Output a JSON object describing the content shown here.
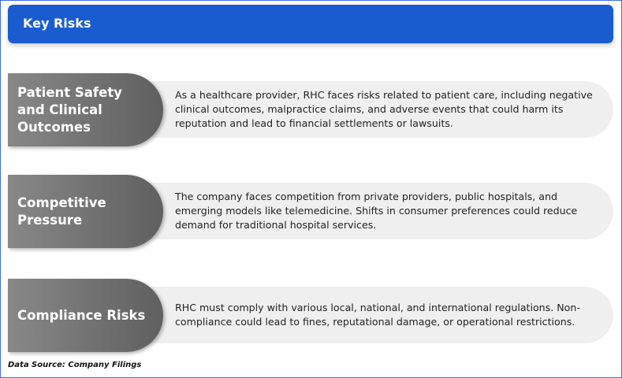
{
  "header": {
    "title": "Key Risks"
  },
  "risks": [
    {
      "title": "Patient Safety and Clinical Outcomes",
      "description": "As a healthcare provider, RHC faces risks related to patient care, including negative clinical outcomes, malpractice claims, and adverse events that could harm its reputation and lead to financial settlements or lawsuits."
    },
    {
      "title": "Competitive Pressure",
      "description": "The company faces competition from private providers, public hospitals, and emerging models like telemedicine. Shifts in consumer preferences could reduce demand for traditional hospital services."
    },
    {
      "title": "Compliance Risks",
      "description": "RHC must comply with various local, national, and international regulations. Non-compliance could lead to fines, reputational damage, or operational restrictions."
    }
  ],
  "footer": {
    "source": "Data Source: Company Filings"
  },
  "colors": {
    "header": "#1a5bd0",
    "label": "#6e6e6e",
    "pill": "#efefef"
  }
}
